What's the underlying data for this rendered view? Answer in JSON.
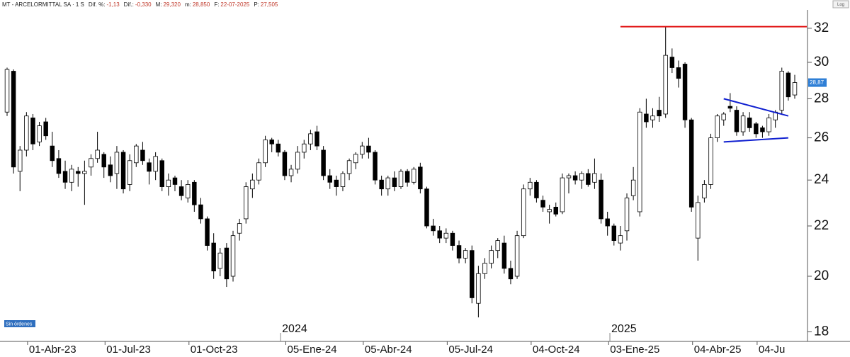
{
  "log_button": "Log",
  "orders_label": "Sin órdenes",
  "header": {
    "symbol": "MT - ARCELORMITTAL SA · 1 S",
    "items": [
      {
        "label": "Dif. %:",
        "value": "-1,13"
      },
      {
        "label": "Dif.:",
        "value": "-0,330"
      },
      {
        "label": "M:",
        "value": "29,320"
      },
      {
        "label": "m:",
        "value": "28,850"
      },
      {
        "label": "F:",
        "value": "22-07-2025"
      },
      {
        "label": "P:",
        "value": "27,505"
      }
    ]
  },
  "chart_data": {
    "type": "candlestick",
    "categories": [
      null,
      null,
      null,
      null,
      null,
      null,
      null,
      null,
      "01-Abr-23",
      null,
      null,
      null,
      null,
      null,
      null,
      null,
      null,
      null,
      null,
      null,
      "01-Jul-23",
      null,
      null,
      null,
      null,
      null,
      null,
      null,
      null,
      null,
      null,
      null,
      null,
      "01-Oct-23",
      null,
      null,
      null,
      null,
      null,
      null,
      null,
      null,
      null,
      null,
      null,
      null,
      null,
      null,
      "05-Ene-24",
      null,
      null,
      null,
      null,
      null,
      null,
      null,
      null,
      null,
      null,
      null,
      "05-Abr-24",
      null,
      null,
      null,
      null,
      null,
      null,
      null,
      null,
      null,
      null,
      null,
      null,
      "05-Jul-24",
      null,
      null,
      null,
      null,
      null,
      null,
      null,
      null,
      null,
      null,
      null,
      null,
      "04-Oct-24",
      null,
      null,
      null,
      null,
      null,
      null,
      null,
      null,
      null,
      null,
      null,
      "03-Ene-25",
      null,
      null,
      null,
      null,
      null,
      null,
      null,
      null,
      null,
      null,
      null,
      null,
      "04-Abr-25",
      null,
      null,
      null,
      null,
      null,
      null,
      null,
      null,
      null,
      "04-Ju",
      null
    ],
    "year_labels": [
      {
        "index": 45,
        "label": "2024"
      },
      {
        "index": 96,
        "label": "2025"
      }
    ],
    "open": [
      27.3,
      29.5,
      24.4,
      25.4,
      27.0,
      25.8,
      26.8,
      25.6,
      25.0,
      24.4,
      23.9,
      24.4,
      24.3,
      24.6,
      25.0,
      25.2,
      24.7,
      24.3,
      25.3,
      23.8,
      24.8,
      25.4,
      24.8,
      24.4,
      24.9,
      23.7,
      24.1,
      23.7,
      23.2,
      23.9,
      22.9,
      22.3,
      21.3,
      20.3,
      21.1,
      20.0,
      21.7,
      22.3,
      23.6,
      24.0,
      24.8,
      25.9,
      25.7,
      25.3,
      24.2,
      24.5,
      25.3,
      25.7,
      26.3,
      25.4,
      24.2,
      24.0,
      23.7,
      24.3,
      24.8,
      25.2,
      25.6,
      25.3,
      24.0,
      23.6,
      24.1,
      23.7,
      24.4,
      23.9,
      24.6,
      23.6,
      22.0,
      21.8,
      21.5,
      21.7,
      21.2,
      20.7,
      21.0,
      19.0,
      20.1,
      20.5,
      21.0,
      21.3,
      20.3,
      20.0,
      21.6,
      23.6,
      23.9,
      23.1,
      22.6,
      22.8,
      22.6,
      24.1,
      24.2,
      24.0,
      24.3,
      23.9,
      24.0,
      22.3,
      22.0,
      21.3,
      21.8,
      23.3,
      22.6,
      27.2,
      26.9,
      27.4,
      27.2,
      30.3,
      29.7,
      29.9,
      26.9,
      21.5,
      23.2,
      23.8,
      26.0,
      26.9,
      27.6,
      27.4,
      26.3,
      27.0,
      26.7,
      26.5,
      26.3,
      26.9,
      27.4,
      29.4,
      28.2
    ],
    "high": [
      29.7,
      29.6,
      25.6,
      27.3,
      27.2,
      26.8,
      27.0,
      26.3,
      25.4,
      24.9,
      24.7,
      24.6,
      24.9,
      25.2,
      26.3,
      25.3,
      25.1,
      25.6,
      25.4,
      25.2,
      25.7,
      25.8,
      25.0,
      25.3,
      25.0,
      24.3,
      24.2,
      24.0,
      24.0,
      24.0,
      23.2,
      22.4,
      21.7,
      21.1,
      21.3,
      21.8,
      22.3,
      23.9,
      24.3,
      25.0,
      26.1,
      26.0,
      25.9,
      25.4,
      24.7,
      25.6,
      25.9,
      26.4,
      26.6,
      25.6,
      24.5,
      24.2,
      24.4,
      25.0,
      25.3,
      25.8,
      26.0,
      25.4,
      24.2,
      24.2,
      24.4,
      24.5,
      24.5,
      24.6,
      24.8,
      23.7,
      22.3,
      22.0,
      21.9,
      21.8,
      21.4,
      21.1,
      21.2,
      20.4,
      20.7,
      21.2,
      21.5,
      21.6,
      20.6,
      21.8,
      23.8,
      24.1,
      24.0,
      23.3,
      22.9,
      23.0,
      24.3,
      24.3,
      24.4,
      24.4,
      24.5,
      25.0,
      24.3,
      22.6,
      22.1,
      22.0,
      23.4,
      24.6,
      27.5,
      28.0,
      27.5,
      28.1,
      32.1,
      30.8,
      30.1,
      30.0,
      27.0,
      23.3,
      24.0,
      26.2,
      27.2,
      27.3,
      28.3,
      27.6,
      27.3,
      27.3,
      26.8,
      26.6,
      27.2,
      27.4,
      29.7,
      29.5,
      29.3
    ],
    "low": [
      27.1,
      24.3,
      23.5,
      25.1,
      25.4,
      25.6,
      25.9,
      24.6,
      24.1,
      23.6,
      23.5,
      23.7,
      22.9,
      24.2,
      24.8,
      24.1,
      23.9,
      23.6,
      23.4,
      23.5,
      24.6,
      24.7,
      23.8,
      24.0,
      23.5,
      23.3,
      23.5,
      23.1,
      23.0,
      22.6,
      22.1,
      21.0,
      19.9,
      20.0,
      19.6,
      19.8,
      21.4,
      22.1,
      23.2,
      23.8,
      24.6,
      25.3,
      25.1,
      24.0,
      23.9,
      24.3,
      25.0,
      25.4,
      25.4,
      24.0,
      23.6,
      23.3,
      23.5,
      24.0,
      24.5,
      25.0,
      25.0,
      23.8,
      23.3,
      23.3,
      23.5,
      23.6,
      23.7,
      23.8,
      23.4,
      21.9,
      21.6,
      21.3,
      21.3,
      21.0,
      20.5,
      20.5,
      19.0,
      18.5,
      19.9,
      20.3,
      20.7,
      20.1,
      19.7,
      19.9,
      21.5,
      23.3,
      23.0,
      22.6,
      22.1,
      22.4,
      22.5,
      23.4,
      23.8,
      23.6,
      23.7,
      23.6,
      22.1,
      21.6,
      21.2,
      21.0,
      21.4,
      23.1,
      22.4,
      26.5,
      26.5,
      26.8,
      27.0,
      29.4,
      28.6,
      26.5,
      22.6,
      20.6,
      23.0,
      23.6,
      25.8,
      26.6,
      27.3,
      26.1,
      26.1,
      26.3,
      26.0,
      26.0,
      26.1,
      26.5,
      27.2,
      27.9,
      28.0
    ],
    "close": [
      29.6,
      24.6,
      25.4,
      27.1,
      25.7,
      26.6,
      26.1,
      24.9,
      24.3,
      23.9,
      24.5,
      24.3,
      24.4,
      25.0,
      25.4,
      24.6,
      24.2,
      25.3,
      23.6,
      24.9,
      25.6,
      24.9,
      24.4,
      25.1,
      23.7,
      24.0,
      23.8,
      23.3,
      23.8,
      22.9,
      22.3,
      21.2,
      20.2,
      20.9,
      19.9,
      21.6,
      22.1,
      23.7,
      24.0,
      24.8,
      25.9,
      25.7,
      25.3,
      24.2,
      24.5,
      25.3,
      25.7,
      26.2,
      25.6,
      24.2,
      23.9,
      23.7,
      24.3,
      24.9,
      25.2,
      25.6,
      25.3,
      24.0,
      23.6,
      24.1,
      23.7,
      24.4,
      23.9,
      24.5,
      23.6,
      22.0,
      21.8,
      21.5,
      21.7,
      21.2,
      20.7,
      21.0,
      19.2,
      20.1,
      20.5,
      21.0,
      21.4,
      20.3,
      19.9,
      21.6,
      23.6,
      23.9,
      23.2,
      22.8,
      22.7,
      22.5,
      24.1,
      24.2,
      24.0,
      24.3,
      23.8,
      24.3,
      22.3,
      22.0,
      21.4,
      21.6,
      23.2,
      24.0,
      27.3,
      26.8,
      27.1,
      27.1,
      30.4,
      29.7,
      29.1,
      26.9,
      22.8,
      23.0,
      23.8,
      26.0,
      27.1,
      27.2,
      27.5,
      26.3,
      27.1,
      26.5,
      26.2,
      26.3,
      27.0,
      27.3,
      29.5,
      28.1,
      28.87
    ],
    "last_price_label": "28,87",
    "up_color": "#ffffff",
    "down_color": "#000000",
    "lines": [
      {
        "color": "#e01010",
        "x": [
          95,
          124
        ],
        "values": [
          32.1,
          32.1
        ]
      },
      {
        "color": "#1020d0",
        "x": [
          111,
          121
        ],
        "values": [
          28.0,
          27.1
        ]
      },
      {
        "color": "#1020d0",
        "x": [
          111,
          121
        ],
        "values": [
          25.8,
          26.0
        ]
      }
    ],
    "log": true,
    "ylim": [
      17.7,
      33.0
    ],
    "yticks": [
      18,
      20,
      22,
      24,
      26,
      28,
      30,
      32
    ]
  }
}
